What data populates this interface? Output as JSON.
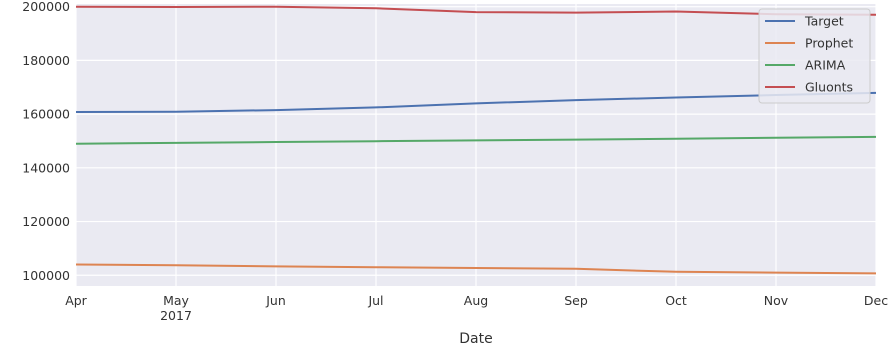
{
  "chart_data": {
    "type": "line",
    "title": "",
    "xlabel": "Date",
    "ylabel": "",
    "x": [
      "Apr",
      "May",
      "Jun",
      "Jul",
      "Aug",
      "Sep",
      "Oct",
      "Nov",
      "Dec"
    ],
    "x_year_label": "2017",
    "ylim": [
      96000,
      201000
    ],
    "yticks": [
      100000,
      120000,
      140000,
      160000,
      180000,
      200000
    ],
    "grid": true,
    "legend_position": "top-right",
    "series": [
      {
        "name": "Target",
        "color": "#4c72b0",
        "values": [
          160800,
          160900,
          161500,
          162500,
          164000,
          165200,
          166200,
          167100,
          167900
        ]
      },
      {
        "name": "Prophet",
        "color": "#dd8452",
        "values": [
          104000,
          103700,
          103300,
          103000,
          102700,
          102400,
          101300,
          101000,
          100700
        ]
      },
      {
        "name": "ARIMA",
        "color": "#55a868",
        "values": [
          149000,
          149300,
          149600,
          149900,
          150200,
          150500,
          150800,
          151200,
          151500
        ]
      },
      {
        "name": "Gluonts",
        "color": "#c44e52",
        "values": [
          200000,
          199900,
          200000,
          199400,
          198000,
          197800,
          198200,
          197200,
          197000
        ]
      }
    ]
  }
}
